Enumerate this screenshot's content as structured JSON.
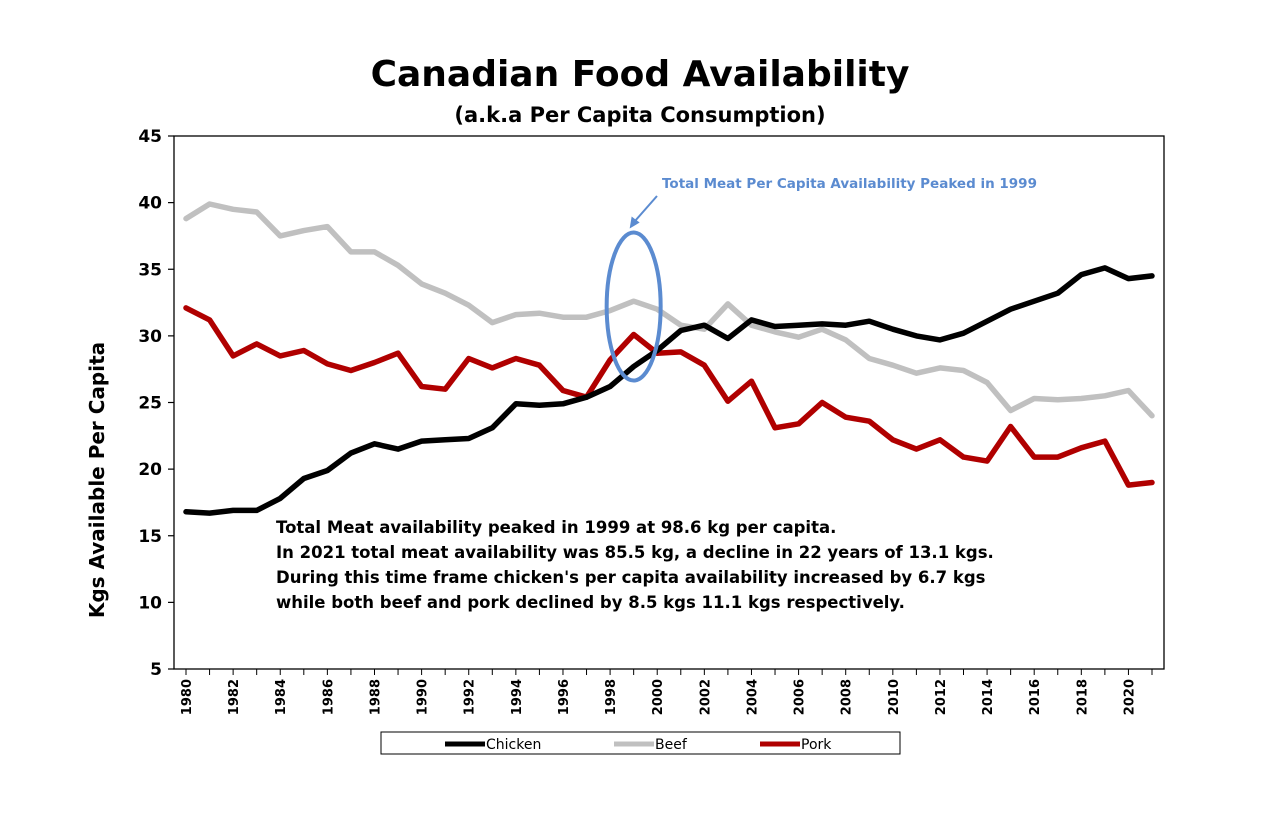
{
  "chart_data": {
    "type": "line",
    "title": "Canadian Food Availability",
    "subtitle": "(a.k.a Per Capita Consumption)",
    "ylabel": "Kgs Available Per Capita",
    "xlabel": "",
    "ylim": [
      5,
      45
    ],
    "yticks": [
      5,
      10,
      15,
      20,
      25,
      30,
      35,
      40,
      45
    ],
    "xlim": [
      1980,
      2021
    ],
    "xticks": [
      "1980",
      "1982",
      "1984",
      "1986",
      "1988",
      "1990",
      "1992",
      "1994",
      "1996",
      "1998",
      "2000",
      "2002",
      "2004",
      "2006",
      "2008",
      "2010",
      "2012",
      "2014",
      "2016",
      "2018",
      "2020"
    ],
    "grid": false,
    "legend_position": "bottom",
    "x": [
      1980,
      1981,
      1982,
      1983,
      1984,
      1985,
      1986,
      1987,
      1988,
      1989,
      1990,
      1991,
      1992,
      1993,
      1994,
      1995,
      1996,
      1997,
      1998,
      1999,
      2000,
      2001,
      2002,
      2003,
      2004,
      2005,
      2006,
      2007,
      2008,
      2009,
      2010,
      2011,
      2012,
      2013,
      2014,
      2015,
      2016,
      2017,
      2018,
      2019,
      2020,
      2021
    ],
    "series": [
      {
        "name": "Chicken",
        "color": "#000000",
        "values": [
          16.8,
          16.7,
          16.9,
          16.9,
          17.8,
          19.3,
          19.9,
          21.2,
          21.9,
          21.5,
          22.1,
          22.2,
          22.3,
          23.1,
          24.9,
          24.8,
          24.9,
          25.4,
          26.2,
          27.7,
          28.9,
          30.4,
          30.8,
          29.8,
          31.2,
          30.7,
          30.8,
          30.9,
          30.8,
          31.1,
          30.5,
          30.0,
          29.7,
          30.2,
          31.1,
          32.0,
          32.6,
          33.2,
          34.6,
          35.1,
          34.3,
          34.5
        ]
      },
      {
        "name": "Beef",
        "color": "#c0c0c0",
        "values": [
          38.8,
          39.9,
          39.5,
          39.3,
          37.5,
          37.9,
          38.2,
          36.3,
          36.3,
          35.3,
          33.9,
          33.2,
          32.3,
          31.0,
          31.6,
          31.7,
          31.4,
          31.4,
          31.9,
          32.6,
          32.0,
          30.8,
          30.5,
          32.4,
          30.8,
          30.3,
          29.9,
          30.5,
          29.7,
          28.3,
          27.8,
          27.2,
          27.6,
          27.4,
          26.5,
          24.4,
          25.3,
          25.2,
          25.3,
          25.5,
          25.9,
          24.0
        ]
      },
      {
        "name": "Pork",
        "color": "#b00000",
        "values": [
          32.1,
          31.2,
          28.5,
          29.4,
          28.5,
          28.9,
          27.9,
          27.4,
          28.0,
          28.7,
          26.2,
          26.0,
          28.3,
          27.6,
          28.3,
          27.8,
          25.9,
          25.4,
          28.2,
          30.1,
          28.7,
          28.8,
          27.8,
          25.1,
          26.6,
          23.1,
          23.4,
          25.0,
          23.9,
          23.6,
          22.2,
          21.5,
          22.2,
          20.9,
          20.6,
          23.2,
          20.9,
          20.9,
          21.6,
          22.1,
          18.8,
          19.0
        ]
      }
    ],
    "annotation": {
      "text": "Total Meat Per Capita Availability Peaked in 1999",
      "color": "#5b8bd0",
      "target_year": 1999,
      "target_value": 32.2
    },
    "note_lines": [
      "Total Meat availability peaked in 1999 at 98.6 kg per capita.",
      "In 2021 total meat availability was 85.5 kg, a decline in 22 years of 13.1 kgs.",
      "During this time frame chicken's per capita availability increased by 6.7 kgs",
      "while both beef and pork declined by 8.5 kgs 11.1 kgs respectively."
    ]
  }
}
